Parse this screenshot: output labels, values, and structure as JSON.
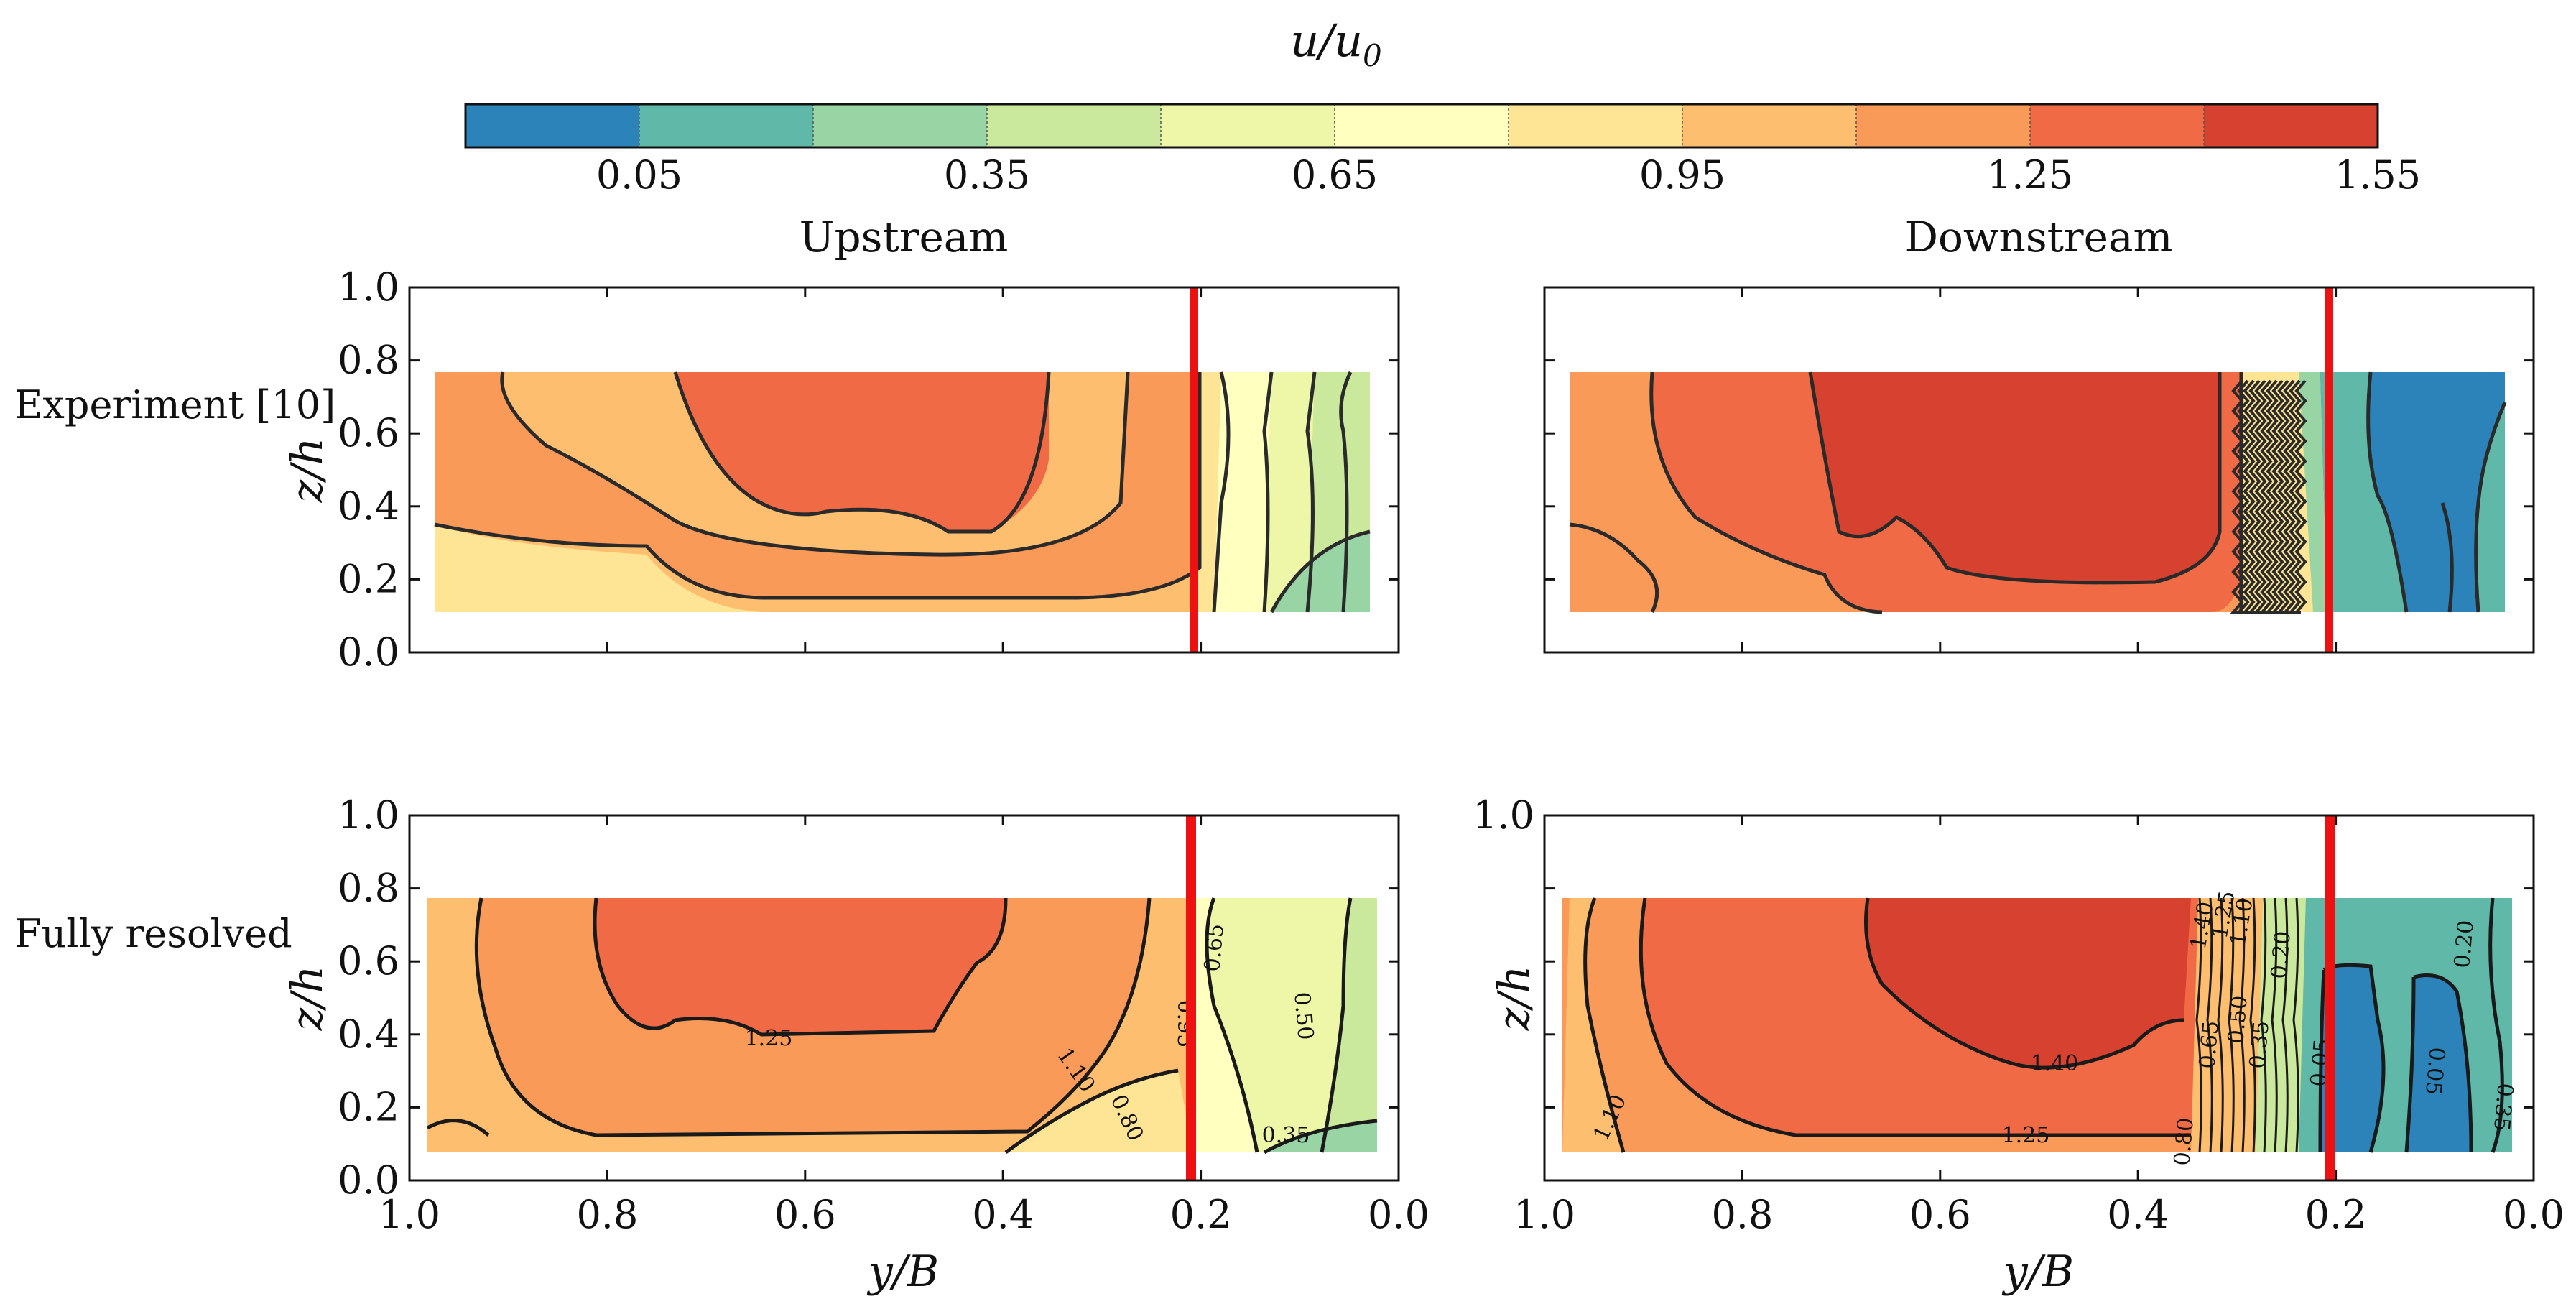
{
  "colorbar": {
    "label_main": "u/u",
    "label_sub": "0",
    "boundaries": [
      -0.1,
      0.05,
      0.2,
      0.35,
      0.5,
      0.65,
      0.8,
      0.95,
      1.1,
      1.25,
      1.4,
      1.55
    ],
    "tick_labels": [
      "0.05",
      "0.35",
      "0.65",
      "0.95",
      "1.25",
      "1.55"
    ],
    "tick_values": [
      0.05,
      0.35,
      0.65,
      0.95,
      1.25,
      1.55
    ],
    "colors": [
      "#2b83ba",
      "#5fb8a8",
      "#98d4a4",
      "#cbe99d",
      "#eef6a8",
      "#ffffbf",
      "#fee495",
      "#fdbf6f",
      "#fa9a58",
      "#f06a45",
      "#d7412f"
    ]
  },
  "column_titles": {
    "left": "Upstream",
    "right": "Downstream"
  },
  "row_labels": {
    "top": "Experiment [10]",
    "bottom": "Fully resolved"
  },
  "axes": {
    "x_label_main": "y/B",
    "y_label_main": "z/h",
    "x_ticks": [
      "1.0",
      "0.8",
      "0.6",
      "0.4",
      "0.2",
      "0.0"
    ],
    "y_ticks": [
      "1.0",
      "0.8",
      "0.6",
      "0.4",
      "0.2",
      "0.0"
    ]
  },
  "chart_data": [
    {
      "type": "heatmap",
      "title": "Upstream",
      "row": "Experiment [10]",
      "xlabel": "y/B",
      "ylabel": "z/h",
      "xlim": [
        1.0,
        0.0
      ],
      "ylim": [
        0.0,
        1.0
      ],
      "domain_y": [
        0.03,
        0.98
      ],
      "domain_z": [
        0.11,
        0.78
      ],
      "interface_line_y": 0.205,
      "contour_labels": []
    },
    {
      "type": "heatmap",
      "title": "Downstream",
      "row": "Experiment [10]",
      "xlabel": "y/B",
      "ylabel": "z/h",
      "xlim": [
        1.0,
        0.0
      ],
      "ylim": [
        0.0,
        1.0
      ],
      "domain_y": [
        0.03,
        0.98
      ],
      "domain_z": [
        0.11,
        0.78
      ],
      "interface_line_y": 0.205,
      "contour_labels": []
    },
    {
      "type": "heatmap",
      "title": "Upstream",
      "row": "Fully resolved",
      "xlabel": "y/B",
      "ylabel": "z/h",
      "xlim": [
        1.0,
        0.0
      ],
      "ylim": [
        0.0,
        1.0
      ],
      "domain_y": [
        0.02,
        0.98
      ],
      "domain_z": [
        0.1,
        0.8
      ],
      "interface_line_y": 0.205,
      "contour_labels": [
        "1.25",
        "1.10",
        "0.80",
        "0.95",
        "0.65",
        "0.50",
        "0.35"
      ]
    },
    {
      "type": "heatmap",
      "title": "Downstream",
      "row": "Fully resolved",
      "xlabel": "y/B",
      "ylabel": "z/h",
      "xlim": [
        1.0,
        0.0
      ],
      "ylim": [
        0.0,
        1.0
      ],
      "domain_y": [
        0.02,
        0.98
      ],
      "domain_z": [
        0.1,
        0.8
      ],
      "interface_line_y": 0.205,
      "contour_labels": [
        "1.40",
        "1.25",
        "1.10",
        "1.40",
        "1.25",
        "1.10",
        "0.80",
        "0.65",
        "0.50",
        "0.35",
        "0.20",
        "0.05",
        "0.20",
        "0.05",
        "0.35"
      ]
    }
  ]
}
